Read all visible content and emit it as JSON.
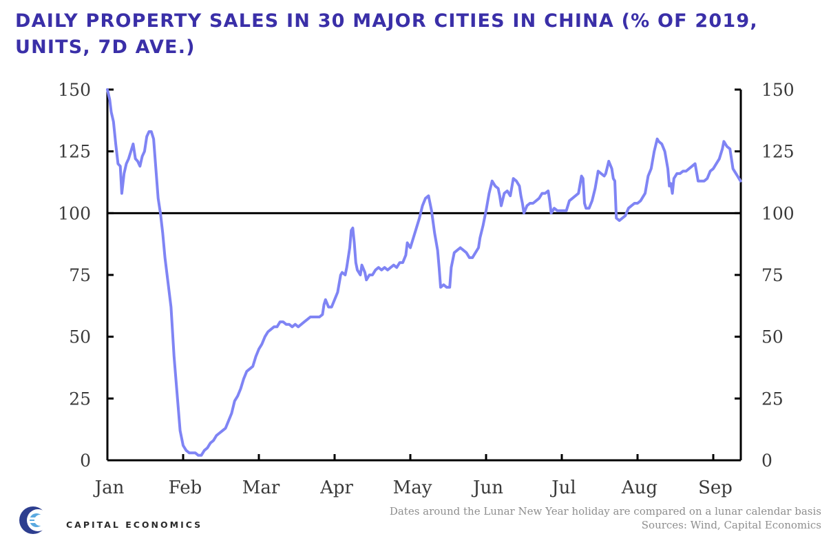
{
  "title": "DAILY PROPERTY SALES IN 30 MAJOR CITIES IN CHINA (% OF 2019, UNITS, 7D AVE.)",
  "footnote": "Dates around the Lunar New Year holiday are compared on a lunar calendar basis",
  "sources": "Sources: Wind, Capital Economics",
  "logo": {
    "text": "CAPITAL ECONOMICS"
  },
  "colors": {
    "title": "#3a2fa8",
    "series": "#7f84f4",
    "axis": "#000000",
    "text": "#3a3a3a"
  },
  "chart_data": {
    "type": "line",
    "title": "DAILY PROPERTY SALES IN 30 MAJOR CITIES IN CHINA (% OF 2019, UNITS, 7D AVE.)",
    "xlabel": "",
    "ylabel": "",
    "ylim": [
      0,
      150
    ],
    "yticks": [
      0,
      25,
      50,
      75,
      100,
      125,
      150
    ],
    "ytick_labels": [
      "0",
      "25",
      "50",
      "75",
      "100",
      "125",
      "150"
    ],
    "month_labels": [
      "Jan",
      "Feb",
      "Mar",
      "Apr",
      "May",
      "Jun",
      "Jul",
      "Aug",
      "Sep"
    ],
    "xlim": [
      0,
      8.37
    ],
    "reference_line": 100,
    "grid": false,
    "series": [
      {
        "name": "Daily property sales (% of 2019)",
        "points": [
          [
            0.0,
            150
          ],
          [
            0.03,
            146
          ],
          [
            0.05,
            141
          ],
          [
            0.08,
            137
          ],
          [
            0.11,
            128
          ],
          [
            0.14,
            120
          ],
          [
            0.17,
            119
          ],
          [
            0.19,
            108
          ],
          [
            0.22,
            116
          ],
          [
            0.25,
            120
          ],
          [
            0.28,
            122
          ],
          [
            0.31,
            125
          ],
          [
            0.34,
            128
          ],
          [
            0.37,
            122
          ],
          [
            0.4,
            121
          ],
          [
            0.43,
            119
          ],
          [
            0.46,
            123
          ],
          [
            0.49,
            125
          ],
          [
            0.52,
            131
          ],
          [
            0.55,
            133
          ],
          [
            0.58,
            133
          ],
          [
            0.61,
            130
          ],
          [
            0.64,
            118
          ],
          [
            0.67,
            106
          ],
          [
            0.7,
            100
          ],
          [
            0.73,
            92
          ],
          [
            0.76,
            82
          ],
          [
            0.8,
            72
          ],
          [
            0.84,
            62
          ],
          [
            0.88,
            42
          ],
          [
            0.92,
            27
          ],
          [
            0.96,
            12
          ],
          [
            1.0,
            6
          ],
          [
            1.04,
            4
          ],
          [
            1.08,
            3
          ],
          [
            1.12,
            3
          ],
          [
            1.16,
            3
          ],
          [
            1.2,
            2
          ],
          [
            1.24,
            2
          ],
          [
            1.28,
            4
          ],
          [
            1.32,
            5
          ],
          [
            1.36,
            7
          ],
          [
            1.4,
            8
          ],
          [
            1.44,
            10
          ],
          [
            1.48,
            11
          ],
          [
            1.52,
            12
          ],
          [
            1.56,
            13
          ],
          [
            1.6,
            16
          ],
          [
            1.64,
            19
          ],
          [
            1.68,
            24
          ],
          [
            1.72,
            26
          ],
          [
            1.76,
            29
          ],
          [
            1.8,
            33
          ],
          [
            1.84,
            36
          ],
          [
            1.88,
            37
          ],
          [
            1.92,
            38
          ],
          [
            1.96,
            42
          ],
          [
            2.0,
            45
          ],
          [
            2.04,
            47
          ],
          [
            2.08,
            50
          ],
          [
            2.12,
            52
          ],
          [
            2.16,
            53
          ],
          [
            2.2,
            54
          ],
          [
            2.24,
            54
          ],
          [
            2.28,
            56
          ],
          [
            2.32,
            56
          ],
          [
            2.36,
            55
          ],
          [
            2.4,
            55
          ],
          [
            2.44,
            54
          ],
          [
            2.48,
            55
          ],
          [
            2.52,
            54
          ],
          [
            2.56,
            55
          ],
          [
            2.6,
            56
          ],
          [
            2.64,
            57
          ],
          [
            2.68,
            58
          ],
          [
            2.72,
            58
          ],
          [
            2.76,
            58
          ],
          [
            2.8,
            58
          ],
          [
            2.84,
            59
          ],
          [
            2.86,
            63
          ],
          [
            2.88,
            65
          ],
          [
            2.92,
            62
          ],
          [
            2.96,
            62
          ],
          [
            3.0,
            65
          ],
          [
            3.04,
            68
          ],
          [
            3.08,
            75
          ],
          [
            3.1,
            76
          ],
          [
            3.14,
            75
          ],
          [
            3.16,
            78
          ],
          [
            3.2,
            86
          ],
          [
            3.22,
            93
          ],
          [
            3.24,
            94
          ],
          [
            3.26,
            88
          ],
          [
            3.28,
            80
          ],
          [
            3.3,
            77
          ],
          [
            3.34,
            75
          ],
          [
            3.36,
            79
          ],
          [
            3.4,
            76
          ],
          [
            3.42,
            73
          ],
          [
            3.46,
            75
          ],
          [
            3.5,
            75
          ],
          [
            3.54,
            77
          ],
          [
            3.58,
            78
          ],
          [
            3.62,
            77
          ],
          [
            3.66,
            78
          ],
          [
            3.7,
            77
          ],
          [
            3.74,
            78
          ],
          [
            3.78,
            79
          ],
          [
            3.82,
            78
          ],
          [
            3.86,
            80
          ],
          [
            3.9,
            80
          ],
          [
            3.94,
            83
          ],
          [
            3.96,
            88
          ],
          [
            4.0,
            86
          ],
          [
            4.04,
            90
          ],
          [
            4.08,
            94
          ],
          [
            4.12,
            98
          ],
          [
            4.16,
            103
          ],
          [
            4.2,
            106
          ],
          [
            4.24,
            107
          ],
          [
            4.28,
            101
          ],
          [
            4.32,
            92
          ],
          [
            4.36,
            85
          ],
          [
            4.38,
            78
          ],
          [
            4.4,
            70
          ],
          [
            4.44,
            71
          ],
          [
            4.48,
            70
          ],
          [
            4.52,
            70
          ],
          [
            4.54,
            78
          ],
          [
            4.58,
            84
          ],
          [
            4.62,
            85
          ],
          [
            4.66,
            86
          ],
          [
            4.7,
            85
          ],
          [
            4.74,
            84
          ],
          [
            4.78,
            82
          ],
          [
            4.82,
            82
          ],
          [
            4.86,
            84
          ],
          [
            4.9,
            86
          ],
          [
            4.92,
            90
          ],
          [
            4.96,
            95
          ],
          [
            5.0,
            101
          ],
          [
            5.04,
            108
          ],
          [
            5.08,
            113
          ],
          [
            5.12,
            111
          ],
          [
            5.16,
            110
          ],
          [
            5.18,
            107
          ],
          [
            5.2,
            103
          ],
          [
            5.24,
            108
          ],
          [
            5.28,
            109
          ],
          [
            5.32,
            107
          ],
          [
            5.36,
            114
          ],
          [
            5.4,
            113
          ],
          [
            5.44,
            111
          ],
          [
            5.46,
            107
          ],
          [
            5.48,
            104
          ],
          [
            5.5,
            100
          ],
          [
            5.54,
            103
          ],
          [
            5.58,
            104
          ],
          [
            5.62,
            104
          ],
          [
            5.66,
            105
          ],
          [
            5.7,
            106
          ],
          [
            5.74,
            108
          ],
          [
            5.78,
            108
          ],
          [
            5.82,
            109
          ],
          [
            5.84,
            105
          ],
          [
            5.86,
            100
          ],
          [
            5.9,
            102
          ],
          [
            5.94,
            101
          ],
          [
            5.98,
            101
          ],
          [
            6.02,
            101
          ],
          [
            6.06,
            101
          ],
          [
            6.1,
            105
          ],
          [
            6.14,
            106
          ],
          [
            6.18,
            107
          ],
          [
            6.22,
            108
          ],
          [
            6.26,
            115
          ],
          [
            6.28,
            114
          ],
          [
            6.3,
            104
          ],
          [
            6.32,
            102
          ],
          [
            6.36,
            102
          ],
          [
            6.4,
            105
          ],
          [
            6.44,
            110
          ],
          [
            6.48,
            117
          ],
          [
            6.52,
            116
          ],
          [
            6.56,
            115
          ],
          [
            6.58,
            116
          ],
          [
            6.62,
            121
          ],
          [
            6.66,
            118
          ],
          [
            6.68,
            114
          ],
          [
            6.7,
            113
          ],
          [
            6.72,
            98
          ],
          [
            6.76,
            97
          ],
          [
            6.8,
            98
          ],
          [
            6.84,
            99
          ],
          [
            6.88,
            102
          ],
          [
            6.92,
            103
          ],
          [
            6.96,
            104
          ],
          [
            7.0,
            104
          ],
          [
            7.04,
            105
          ],
          [
            7.08,
            107
          ],
          [
            7.1,
            108
          ],
          [
            7.14,
            115
          ],
          [
            7.18,
            118
          ],
          [
            7.22,
            125
          ],
          [
            7.26,
            130
          ],
          [
            7.28,
            129
          ],
          [
            7.32,
            128
          ],
          [
            7.36,
            125
          ],
          [
            7.4,
            118
          ],
          [
            7.42,
            111
          ],
          [
            7.44,
            112
          ],
          [
            7.46,
            108
          ],
          [
            7.48,
            114
          ],
          [
            7.52,
            116
          ],
          [
            7.56,
            116
          ],
          [
            7.6,
            117
          ],
          [
            7.64,
            117
          ],
          [
            7.68,
            118
          ],
          [
            7.72,
            119
          ],
          [
            7.76,
            120
          ],
          [
            7.8,
            113
          ],
          [
            7.84,
            113
          ],
          [
            7.88,
            113
          ],
          [
            7.92,
            114
          ],
          [
            7.96,
            117
          ],
          [
            8.0,
            118
          ],
          [
            8.04,
            120
          ],
          [
            8.08,
            122
          ],
          [
            8.12,
            126
          ],
          [
            8.14,
            129
          ],
          [
            8.18,
            127
          ],
          [
            8.22,
            126
          ],
          [
            8.24,
            122
          ],
          [
            8.26,
            118
          ],
          [
            8.28,
            117
          ],
          [
            8.32,
            115
          ],
          [
            8.34,
            114
          ],
          [
            8.36,
            113
          ]
        ]
      }
    ]
  }
}
